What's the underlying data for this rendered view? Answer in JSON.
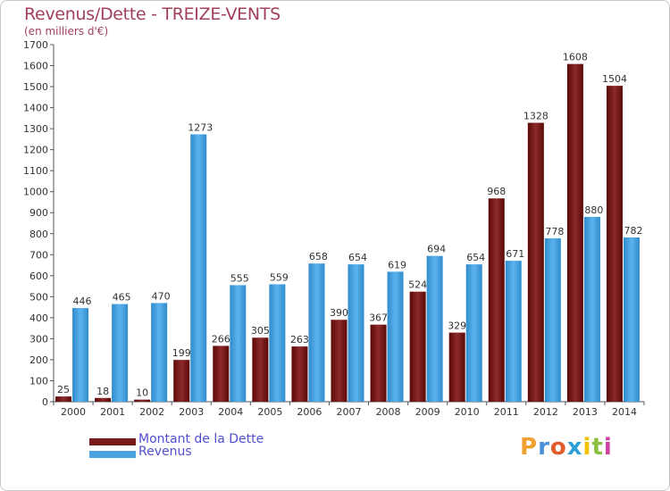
{
  "chart_data": {
    "type": "bar",
    "title": "Revenus/Dette - TREIZE-VENTS",
    "subtitle": "(en milliers d'€)",
    "categories": [
      "2000",
      "2001",
      "2002",
      "2003",
      "2004",
      "2005",
      "2006",
      "2007",
      "2008",
      "2009",
      "2010",
      "2011",
      "2012",
      "2013",
      "2014"
    ],
    "series": [
      {
        "name": "Montant de la Dette",
        "color": "#7a1a1a",
        "values": [
          25,
          18,
          10,
          199,
          266,
          305,
          263,
          390,
          367,
          524,
          329,
          968,
          1328,
          1608,
          1504
        ]
      },
      {
        "name": "Revenus",
        "color": "#4aa3e3",
        "values": [
          446,
          465,
          470,
          1273,
          555,
          559,
          658,
          654,
          619,
          694,
          654,
          671,
          778,
          880,
          782
        ]
      }
    ],
    "ylim": [
      0,
      1700
    ],
    "yticks": [
      0,
      100,
      200,
      300,
      400,
      500,
      600,
      700,
      800,
      900,
      1000,
      1100,
      1200,
      1300,
      1400,
      1500,
      1600,
      1700
    ],
    "xlabel": "",
    "ylabel": "",
    "grid": false,
    "legend": "bottom-left"
  },
  "legend": {
    "items": [
      {
        "label": "Montant de la Dette",
        "color": "#7a1a1a"
      },
      {
        "label": "Revenus",
        "color": "#4aa3e3"
      }
    ]
  },
  "logo": {
    "letters": [
      "P",
      "r",
      "o",
      "x",
      "i",
      "t",
      "i"
    ],
    "colors": [
      "#f0a030",
      "#4a90d9",
      "#e05a2a",
      "#2ea0d8",
      "#f2c200",
      "#8ac040",
      "#d040a0"
    ]
  }
}
